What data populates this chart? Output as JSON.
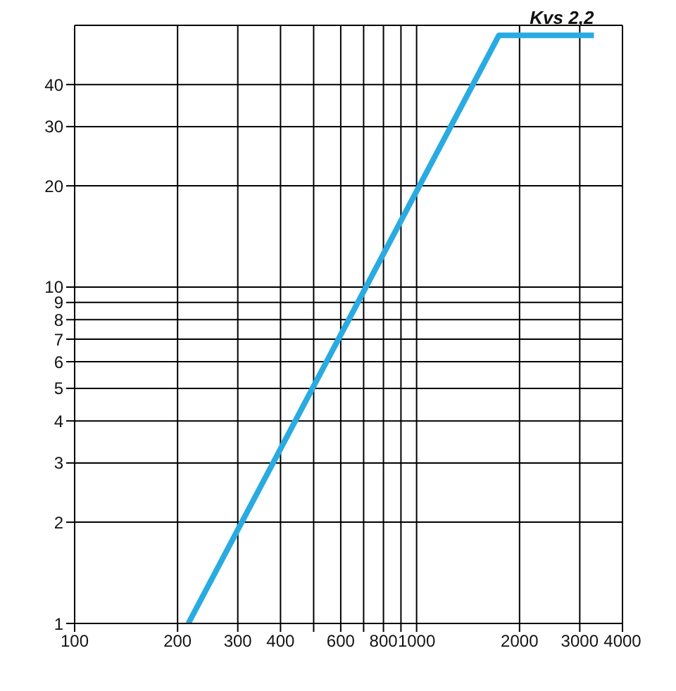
{
  "chart_data": {
    "type": "line",
    "log": "xy",
    "grid": true,
    "marker": "none",
    "line_style": "solid",
    "xlim": [
      100,
      4000
    ],
    "ylim": [
      1,
      60
    ],
    "xticks": [
      100,
      200,
      300,
      400,
      {
        "value": 500,
        "label": null
      },
      600,
      {
        "value": 700,
        "label": null
      },
      800,
      {
        "value": 900,
        "label": null
      },
      1000,
      2000,
      3000,
      4000
    ],
    "yticks": [
      1,
      2,
      3,
      4,
      5,
      6,
      7,
      8,
      9,
      10,
      20,
      30,
      40
    ],
    "series": [
      {
        "name": "Kvs 2,2",
        "color": "#29abe2",
        "x": [
          215,
          1740,
          3300
        ],
        "values": [
          1,
          56,
          56
        ]
      }
    ]
  }
}
